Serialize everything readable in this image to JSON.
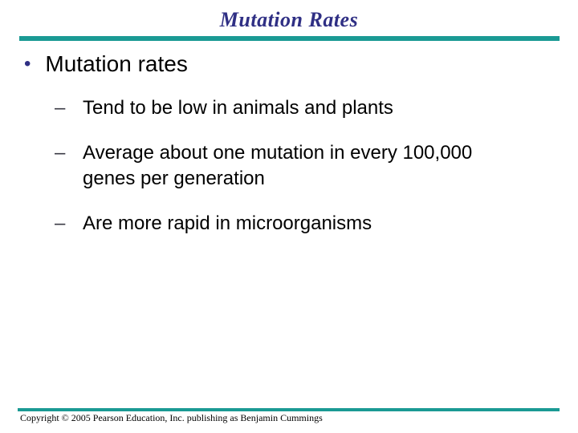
{
  "slide": {
    "title": "Mutation Rates",
    "bullet": {
      "marker": "•",
      "label": "Mutation rates"
    },
    "sub_bullets": [
      {
        "marker": "–",
        "text": "Tend to be low in animals and plants"
      },
      {
        "marker": "–",
        "text": "Average about one mutation in every 100,000 genes per generation"
      },
      {
        "marker": "–",
        "text": "Are more rapid in microorganisms"
      }
    ],
    "footer": "Copyright © 2005 Pearson Education, Inc. publishing as Benjamin Cummings",
    "colors": {
      "title_navy": "#2F2F84",
      "rule_teal": "#1A9A94",
      "body_black": "#000000"
    }
  }
}
